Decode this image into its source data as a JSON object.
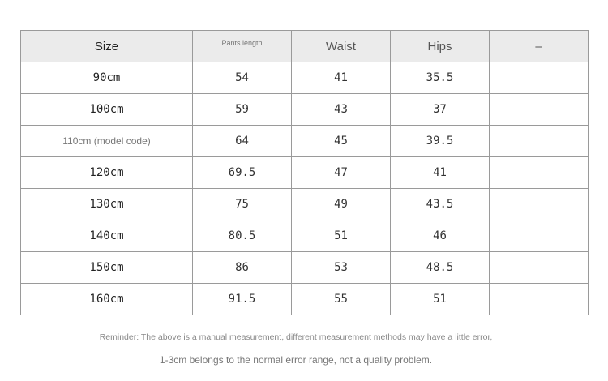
{
  "table": {
    "headers": {
      "size": "Size",
      "pants_length": "Pants length",
      "waist": "Waist",
      "hips": "Hips",
      "extra": "–"
    },
    "rows": [
      {
        "size": "90cm",
        "pants_length": "54",
        "waist": "41",
        "hips": "35.5",
        "extra": ""
      },
      {
        "size": "100cm",
        "pants_length": "59",
        "waist": "43",
        "hips": "37",
        "extra": ""
      },
      {
        "size": "110cm (model code)",
        "pants_length": "64",
        "waist": "45",
        "hips": "39.5",
        "extra": ""
      },
      {
        "size": "120cm",
        "pants_length": "69.5",
        "waist": "47",
        "hips": "41",
        "extra": ""
      },
      {
        "size": "130cm",
        "pants_length": "75",
        "waist": "49",
        "hips": "43.5",
        "extra": ""
      },
      {
        "size": "140cm",
        "pants_length": "80.5",
        "waist": "51",
        "hips": "46",
        "extra": ""
      },
      {
        "size": "150cm",
        "pants_length": "86",
        "waist": "53",
        "hips": "48.5",
        "extra": ""
      },
      {
        "size": "160cm",
        "pants_length": "91.5",
        "waist": "55",
        "hips": "51",
        "extra": ""
      }
    ]
  },
  "notes": {
    "line1": "Reminder: The above is a manual measurement, different measurement methods may have a little error,",
    "line2": "1-3cm belongs to the normal error range, not a quality problem."
  }
}
